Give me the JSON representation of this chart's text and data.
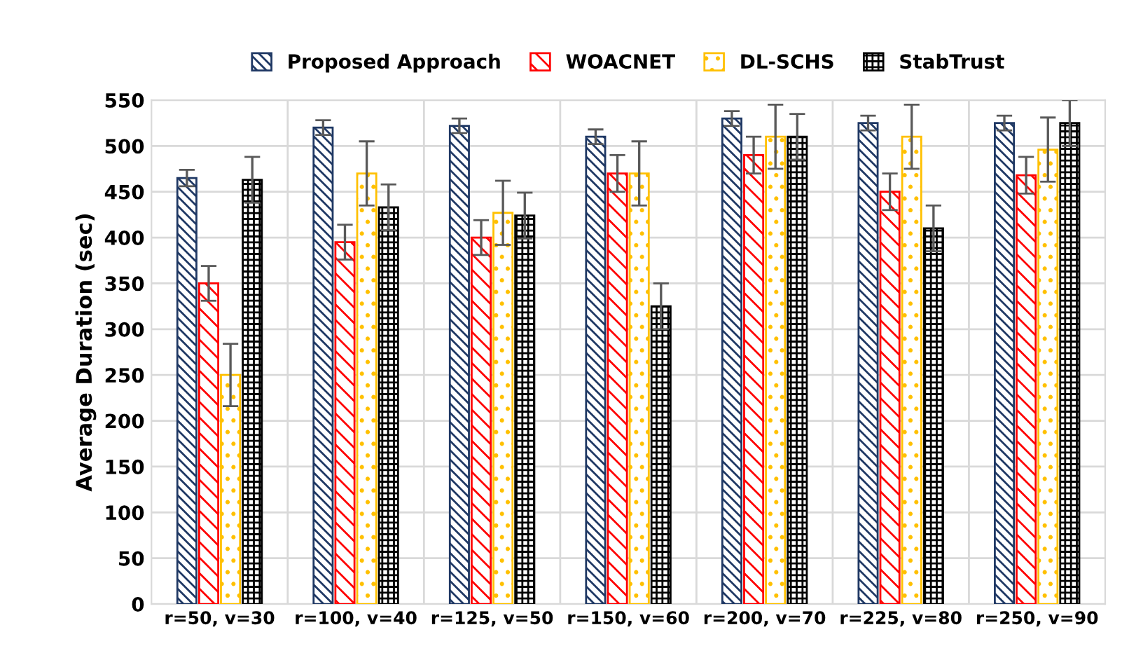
{
  "chart_data": {
    "type": "bar",
    "ylabel": "Average Duration (sec)",
    "categories": [
      "r=50, v=30",
      "r=100, v=40",
      "r=125, v=50",
      "r=150, v=60",
      "r=200, v=70",
      "r=225, v=80",
      "r=250, v=90"
    ],
    "series": [
      {
        "name": "Proposed Approach",
        "color": "#1f3864",
        "values": [
          465,
          520,
          522,
          510,
          530,
          525,
          525
        ],
        "errors": [
          9,
          8,
          8,
          8,
          8,
          8,
          8
        ]
      },
      {
        "name": "WOACNET",
        "color": "#ff0000",
        "values": [
          350,
          395,
          400,
          470,
          490,
          450,
          468
        ],
        "errors": [
          19,
          19,
          19,
          20,
          20,
          20,
          20
        ]
      },
      {
        "name": "DL-SCHS",
        "color": "#ffc000",
        "values": [
          250,
          470,
          427,
          470,
          510,
          510,
          496
        ],
        "errors": [
          34,
          35,
          35,
          35,
          35,
          35,
          35
        ]
      },
      {
        "name": "StabTrust",
        "color": "#000000",
        "values": [
          463,
          433,
          424,
          325,
          510,
          410,
          525
        ],
        "errors": [
          25,
          25,
          25,
          25,
          25,
          25,
          25
        ]
      }
    ],
    "ylim": [
      0,
      550
    ],
    "yticks": [
      0,
      50,
      100,
      150,
      200,
      250,
      300,
      350,
      400,
      450,
      500,
      550
    ],
    "grid": true,
    "legend": "top"
  }
}
